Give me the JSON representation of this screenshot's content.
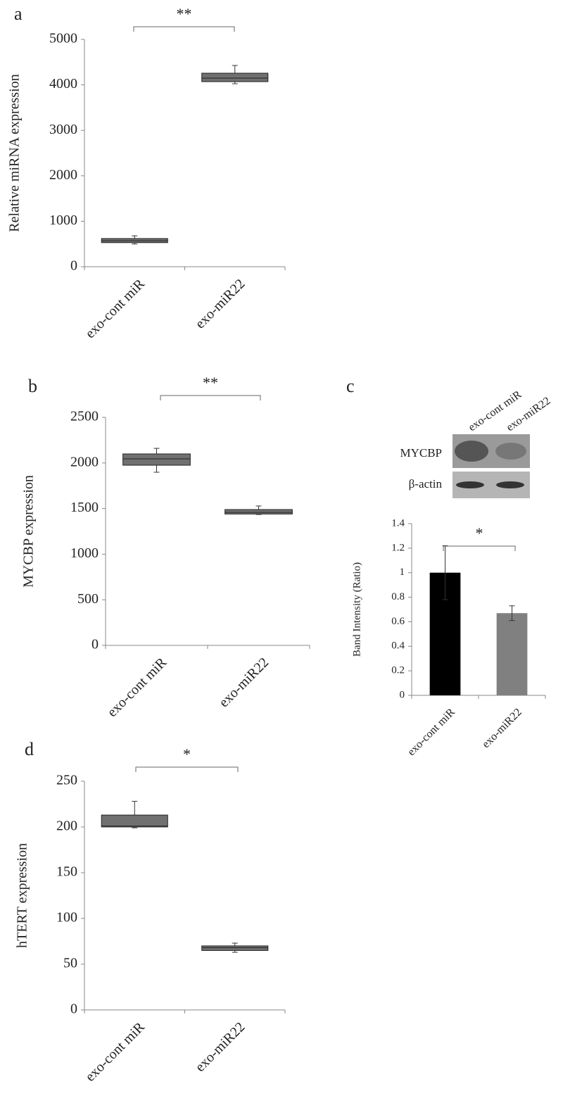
{
  "chart_data": [
    {
      "type": "box",
      "panel_label": "a",
      "y_label": "Relative miRNA expression",
      "annotation": "**",
      "categories": [
        "exo-cont miR",
        "exo-miR22"
      ],
      "color": "#707070",
      "boxes": [
        {
          "min": 500,
          "q1": 530,
          "median": 570,
          "q3": 620,
          "max": 680
        },
        {
          "min": 4025,
          "q1": 4071,
          "median": 4149,
          "q3": 4257,
          "max": 4427
        }
      ],
      "ylim": [
        0,
        5000
      ],
      "yticks": [
        0,
        1000,
        2000,
        3000,
        4000,
        5000
      ]
    },
    {
      "type": "box",
      "panel_label": "b",
      "y_label": "MYCBP expression",
      "annotation": "**",
      "categories": [
        "exo-cont miR",
        "exo-miR22"
      ],
      "color": "#707070",
      "boxes": [
        {
          "min": 1898,
          "q1": 1975,
          "median": 2045,
          "q3": 2099,
          "max": 2160
        },
        {
          "min": 1435,
          "q1": 1440,
          "median": 1458,
          "q3": 1489,
          "max": 1528
        }
      ],
      "ylim": [
        0,
        2500
      ],
      "yticks": [
        0,
        500,
        1000,
        1500,
        2000,
        2500
      ]
    },
    {
      "type": "bar",
      "panel_label": "c",
      "y_label": "Band Intensity (Ratio)",
      "annotation": "*",
      "blot": {
        "lanes": [
          "exo-cont miR",
          "exo-miR22"
        ],
        "rows": [
          "MYCBP",
          "β-actin"
        ]
      },
      "categories": [
        "exo-cont miR",
        "exo-miR22"
      ],
      "colors": [
        "#000000",
        "#808080"
      ],
      "values": [
        1,
        0.67
      ],
      "errors": [
        0.22,
        0.06
      ],
      "ylim": [
        0,
        1.4
      ],
      "yticks": [
        0,
        0.2,
        0.4,
        0.6,
        0.8,
        1,
        1.2,
        1.4
      ]
    },
    {
      "type": "box",
      "panel_label": "d",
      "y_label": "hTERT expression",
      "annotation": "*",
      "categories": [
        "exo-cont miR",
        "exo-miR22"
      ],
      "color": "#707070",
      "boxes": [
        {
          "min": 199,
          "q1": 200,
          "median": 201,
          "q3": 213,
          "max": 228
        },
        {
          "min": 63,
          "q1": 65,
          "median": 68,
          "q3": 70,
          "max": 73
        }
      ],
      "ylim": [
        0,
        250
      ],
      "yticks": [
        0,
        50,
        100,
        150,
        200,
        250
      ]
    }
  ]
}
